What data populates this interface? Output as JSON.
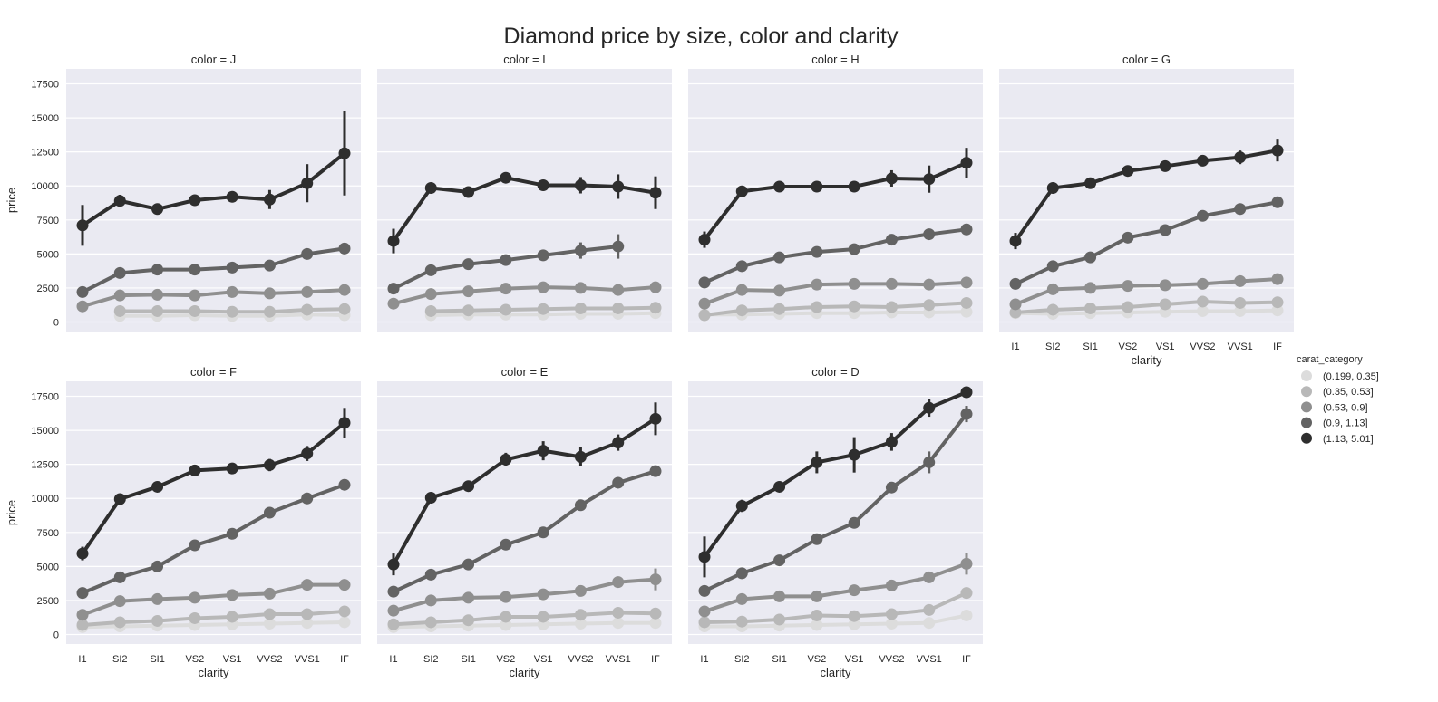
{
  "chart_data": {
    "type": "line",
    "title": "Diamond price by size, color and clarity",
    "xlabel": "clarity",
    "ylabel": "price",
    "ylim": [
      -700,
      18600
    ],
    "yticks": [
      0,
      2500,
      5000,
      7500,
      10000,
      12500,
      15000,
      17500
    ],
    "categories": [
      "I1",
      "SI2",
      "SI1",
      "VS2",
      "VS1",
      "VVS2",
      "VVS1",
      "IF"
    ],
    "grid": true,
    "legend": {
      "title": "carat_category",
      "placement": "right",
      "entries": [
        "(0.199, 0.35]",
        "(0.35, 0.53]",
        "(0.53, 0.9]",
        "(0.9, 1.13]",
        "(1.13, 5.01]"
      ]
    },
    "series_colors": [
      "#dcdcdc",
      "#b8b8b8",
      "#8f8f8f",
      "#636363",
      "#2e2e2e"
    ],
    "panels": [
      {
        "title": "color = J",
        "series": [
          {
            "name": "(0.199, 0.35]",
            "values": [
              null,
              450,
              450,
              500,
              450,
              450,
              550,
              500
            ],
            "errors": [
              0,
              60,
              60,
              60,
              60,
              60,
              60,
              60
            ]
          },
          {
            "name": "(0.35, 0.53]",
            "values": [
              null,
              800,
              800,
              800,
              750,
              750,
              900,
              950
            ],
            "errors": [
              0,
              100,
              100,
              100,
              100,
              100,
              100,
              100
            ]
          },
          {
            "name": "(0.53, 0.9]",
            "values": [
              1150,
              1950,
              2000,
              1950,
              2200,
              2100,
              2200,
              2350
            ],
            "errors": [
              150,
              150,
              150,
              150,
              150,
              150,
              150,
              350
            ]
          },
          {
            "name": "(0.9, 1.13]",
            "values": [
              2200,
              3600,
              3850,
              3850,
              4000,
              4150,
              5000,
              5400
            ],
            "errors": [
              150,
              150,
              150,
              150,
              150,
              300,
              400,
              200
            ]
          },
          {
            "name": "(1.13, 5.01]",
            "values": [
              7100,
              8900,
              8300,
              8950,
              9200,
              9000,
              10200,
              12400
            ],
            "errors": [
              1500,
              450,
              300,
              400,
              400,
              700,
              1400,
              3100
            ]
          }
        ]
      },
      {
        "title": "color = I",
        "series": [
          {
            "name": "(0.199, 0.35]",
            "values": [
              null,
              500,
              550,
              550,
              550,
              600,
              600,
              650
            ],
            "errors": [
              0,
              60,
              60,
              60,
              60,
              60,
              60,
              60
            ]
          },
          {
            "name": "(0.35, 0.53]",
            "values": [
              null,
              800,
              850,
              900,
              950,
              1000,
              1000,
              1050
            ],
            "errors": [
              0,
              80,
              80,
              80,
              80,
              80,
              80,
              80
            ]
          },
          {
            "name": "(0.53, 0.9]",
            "values": [
              1350,
              2050,
              2250,
              2450,
              2550,
              2500,
              2350,
              2550
            ],
            "errors": [
              150,
              150,
              150,
              150,
              150,
              150,
              150,
              150
            ]
          },
          {
            "name": "(0.9, 1.13]",
            "values": [
              2450,
              3800,
              4250,
              4550,
              4900,
              5250,
              5550,
              null
            ],
            "errors": [
              150,
              150,
              150,
              150,
              200,
              600,
              900,
              0
            ]
          },
          {
            "name": "(1.13, 5.01]",
            "values": [
              5950,
              9850,
              9550,
              10600,
              10050,
              10050,
              9950,
              9500
            ],
            "errors": [
              900,
              300,
              250,
              300,
              400,
              600,
              900,
              1200
            ]
          }
        ]
      },
      {
        "title": "color = H",
        "series": [
          {
            "name": "(0.199, 0.35]",
            "values": [
              550,
              550,
              600,
              650,
              650,
              700,
              700,
              750
            ],
            "errors": [
              60,
              60,
              60,
              60,
              60,
              60,
              60,
              60
            ]
          },
          {
            "name": "(0.35, 0.53]",
            "values": [
              500,
              850,
              950,
              1100,
              1150,
              1100,
              1250,
              1400
            ],
            "errors": [
              80,
              80,
              80,
              80,
              80,
              80,
              80,
              80
            ]
          },
          {
            "name": "(0.53, 0.9]",
            "values": [
              1350,
              2350,
              2300,
              2750,
              2800,
              2800,
              2750,
              2900
            ],
            "errors": [
              150,
              150,
              150,
              150,
              150,
              150,
              150,
              150
            ]
          },
          {
            "name": "(0.9, 1.13]",
            "values": [
              2900,
              4100,
              4750,
              5150,
              5350,
              6050,
              6450,
              6800
            ],
            "errors": [
              150,
              150,
              150,
              150,
              150,
              200,
              400,
              200
            ]
          },
          {
            "name": "(1.13, 5.01]",
            "values": [
              6050,
              9600,
              9950,
              9950,
              9950,
              10550,
              10500,
              11700
            ],
            "errors": [
              600,
              250,
              250,
              300,
              400,
              600,
              1000,
              1100
            ]
          }
        ]
      },
      {
        "title": "color = G",
        "series": [
          {
            "name": "(0.199, 0.35]",
            "values": [
              650,
              600,
              650,
              700,
              750,
              800,
              800,
              850
            ],
            "errors": [
              60,
              60,
              60,
              60,
              60,
              60,
              60,
              60
            ]
          },
          {
            "name": "(0.35, 0.53]",
            "values": [
              700,
              900,
              1000,
              1100,
              1300,
              1500,
              1400,
              1450
            ],
            "errors": [
              80,
              80,
              80,
              80,
              80,
              80,
              80,
              80
            ]
          },
          {
            "name": "(0.53, 0.9]",
            "values": [
              1300,
              2400,
              2500,
              2650,
              2700,
              2800,
              3000,
              3150
            ],
            "errors": [
              150,
              150,
              150,
              150,
              150,
              150,
              150,
              150
            ]
          },
          {
            "name": "(0.9, 1.13]",
            "values": [
              2800,
              4100,
              4750,
              6200,
              6750,
              7800,
              8300,
              8800
            ],
            "errors": [
              150,
              150,
              150,
              150,
              150,
              150,
              150,
              200
            ]
          },
          {
            "name": "(1.13, 5.01]",
            "values": [
              5950,
              9850,
              10200,
              11100,
              11450,
              11850,
              12100,
              12600
            ],
            "errors": [
              600,
              300,
              250,
              300,
              300,
              350,
              500,
              800
            ]
          }
        ]
      },
      {
        "title": "color = F",
        "series": [
          {
            "name": "(0.199, 0.35]",
            "values": [
              550,
              600,
              650,
              700,
              750,
              800,
              850,
              900
            ],
            "errors": [
              60,
              60,
              60,
              60,
              60,
              60,
              60,
              60
            ]
          },
          {
            "name": "(0.35, 0.53]",
            "values": [
              700,
              900,
              1000,
              1200,
              1300,
              1500,
              1500,
              1700
            ],
            "errors": [
              80,
              80,
              80,
              80,
              80,
              80,
              80,
              80
            ]
          },
          {
            "name": "(0.53, 0.9]",
            "values": [
              1450,
              2450,
              2600,
              2700,
              2900,
              3000,
              3650,
              3650
            ],
            "errors": [
              150,
              150,
              150,
              150,
              150,
              150,
              150,
              350
            ]
          },
          {
            "name": "(0.9, 1.13]",
            "values": [
              3050,
              4200,
              5000,
              6550,
              7400,
              8950,
              10000,
              11000
            ],
            "errors": [
              150,
              150,
              150,
              150,
              150,
              150,
              150,
              200
            ]
          },
          {
            "name": "(1.13, 5.01]",
            "values": [
              5950,
              9950,
              10850,
              12050,
              12200,
              12450,
              13300,
              15550
            ],
            "errors": [
              500,
              300,
              250,
              300,
              400,
              450,
              550,
              1100
            ]
          }
        ]
      },
      {
        "title": "color = E",
        "series": [
          {
            "name": "(0.199, 0.35]",
            "values": [
              550,
              600,
              650,
              700,
              750,
              800,
              850,
              850
            ],
            "errors": [
              60,
              60,
              60,
              60,
              60,
              60,
              60,
              60
            ]
          },
          {
            "name": "(0.35, 0.53]",
            "values": [
              750,
              900,
              1050,
              1300,
              1300,
              1450,
              1600,
              1550
            ],
            "errors": [
              80,
              80,
              80,
              80,
              80,
              80,
              80,
              80
            ]
          },
          {
            "name": "(0.53, 0.9]",
            "values": [
              1750,
              2500,
              2700,
              2750,
              2950,
              3200,
              3850,
              4050
            ],
            "errors": [
              150,
              150,
              150,
              150,
              150,
              150,
              200,
              800
            ]
          },
          {
            "name": "(0.9, 1.13]",
            "values": [
              3150,
              4400,
              5150,
              6600,
              7500,
              9500,
              11150,
              12000
            ],
            "errors": [
              150,
              150,
              150,
              150,
              150,
              150,
              300,
              400
            ]
          },
          {
            "name": "(1.13, 5.01]",
            "values": [
              5150,
              10050,
              10900,
              12850,
              13500,
              13050,
              14100,
              15850
            ],
            "errors": [
              800,
              350,
              300,
              500,
              700,
              700,
              600,
              1200
            ]
          }
        ]
      },
      {
        "title": "color = D",
        "series": [
          {
            "name": "(0.199, 0.35]",
            "values": [
              600,
              600,
              650,
              700,
              750,
              800,
              850,
              1400
            ],
            "errors": [
              60,
              60,
              60,
              60,
              60,
              60,
              60,
              200
            ]
          },
          {
            "name": "(0.35, 0.53]",
            "values": [
              900,
              950,
              1100,
              1400,
              1350,
              1500,
              1800,
              3050
            ],
            "errors": [
              80,
              80,
              80,
              80,
              80,
              80,
              80,
              400
            ]
          },
          {
            "name": "(0.53, 0.9]",
            "values": [
              1700,
              2600,
              2800,
              2800,
              3250,
              3600,
              4200,
              5200
            ],
            "errors": [
              150,
              150,
              150,
              150,
              150,
              150,
              200,
              800
            ]
          },
          {
            "name": "(0.9, 1.13]",
            "values": [
              3200,
              4500,
              5450,
              7000,
              8200,
              10800,
              12650,
              16200
            ],
            "errors": [
              150,
              150,
              150,
              150,
              150,
              150,
              800,
              600
            ]
          },
          {
            "name": "(1.13, 5.01]",
            "values": [
              5700,
              9450,
              10850,
              12650,
              13200,
              14150,
              16650,
              17800
            ],
            "errors": [
              1500,
              450,
              400,
              800,
              1300,
              650,
              650,
              300
            ]
          }
        ]
      }
    ]
  }
}
